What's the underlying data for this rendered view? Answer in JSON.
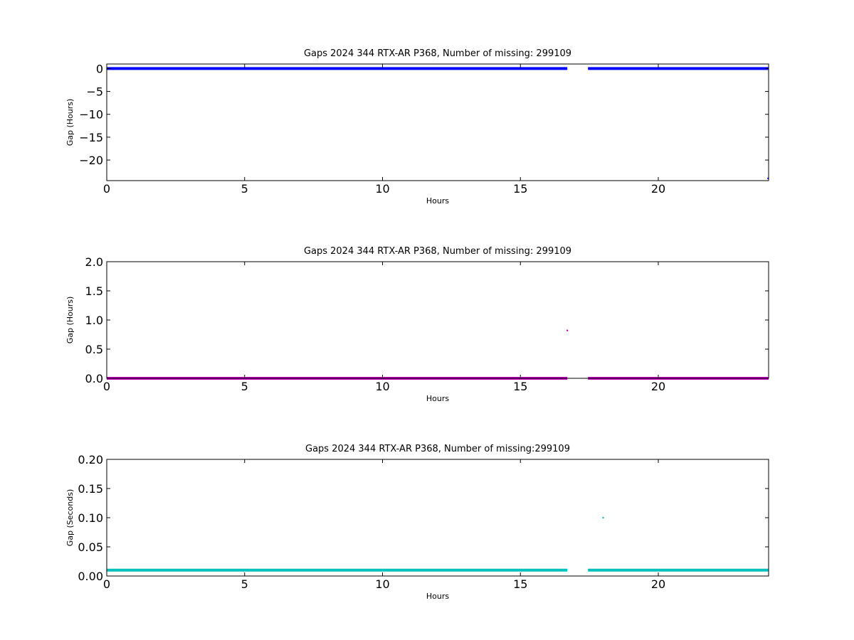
{
  "chart_data": [
    {
      "type": "scatter",
      "title": "Gaps 2024 344 RTX-AR  P368, Number of missing: 299109",
      "xlabel": "Hours",
      "ylabel": "Gap (Hours)",
      "xlim": [
        0,
        24
      ],
      "ylim": [
        -24.5,
        1
      ],
      "xticks": [
        0,
        5,
        10,
        15,
        20
      ],
      "yticks": [
        0,
        -5,
        -10,
        -15,
        -20
      ],
      "color": "#0000ff",
      "series": [
        {
          "kind": "band",
          "x": [
            0,
            16.7
          ],
          "y": 0
        },
        {
          "kind": "band",
          "x": [
            17.45,
            24
          ],
          "y": 0
        },
        {
          "kind": "point",
          "x": 23.98,
          "y": -24
        }
      ]
    },
    {
      "type": "scatter",
      "title": "Gaps 2024 344 RTX-AR  P368, Number of missing: 299109",
      "xlabel": "Hours",
      "ylabel": "Gap (Hours)",
      "xlim": [
        0,
        24
      ],
      "ylim": [
        0,
        2
      ],
      "xticks": [
        0,
        5,
        10,
        15,
        20
      ],
      "yticks": [
        0.0,
        0.5,
        1.0,
        1.5,
        2.0
      ],
      "ytick_decimals": 1,
      "color": "#bf00bf",
      "series": [
        {
          "kind": "band",
          "x": [
            0,
            16.7
          ],
          "y": 0
        },
        {
          "kind": "band",
          "x": [
            17.45,
            24
          ],
          "y": 0
        },
        {
          "kind": "point",
          "x": 16.7,
          "y": 0.82
        }
      ]
    },
    {
      "type": "scatter",
      "title": "Gaps 2024 344 RTX-AR  P368, Number of missing:299109",
      "xlabel": "Hours",
      "ylabel": "Gap (Seconds)",
      "xlim": [
        0,
        24
      ],
      "ylim": [
        0,
        0.2
      ],
      "xticks": [
        0,
        5,
        10,
        15,
        20
      ],
      "yticks": [
        0.0,
        0.05,
        0.1,
        0.15,
        0.2
      ],
      "ytick_decimals": 2,
      "color": "#00bfbf",
      "series": [
        {
          "kind": "band",
          "x": [
            0,
            16.7
          ],
          "y": 0.01
        },
        {
          "kind": "band",
          "x": [
            17.45,
            24
          ],
          "y": 0.01
        },
        {
          "kind": "point",
          "x": 18.0,
          "y": 0.1
        }
      ]
    }
  ]
}
